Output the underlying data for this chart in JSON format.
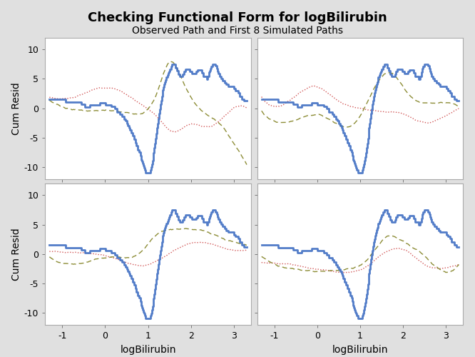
{
  "title": "Checking Functional Form for logBilirubin",
  "subtitle": "Observed Path and First 8 Simulated Paths",
  "xlabel": "logBilirubin",
  "ylabel": "Cum Resid",
  "xlim": [
    -1.4,
    3.4
  ],
  "ylim": [
    -12,
    12
  ],
  "yticks": [
    -10,
    -5,
    0,
    5,
    10
  ],
  "xticks": [
    -1,
    0,
    1,
    2,
    3
  ],
  "bg_color": "#e0e0e0",
  "panel_bg": "#ffffff",
  "observed_color": "#4472C4",
  "sim_color_red": "#CC4444",
  "sim_color_olive": "#808020",
  "title_fontsize": 13,
  "subtitle_fontsize": 10,
  "axis_label_fontsize": 10,
  "tick_fontsize": 9
}
